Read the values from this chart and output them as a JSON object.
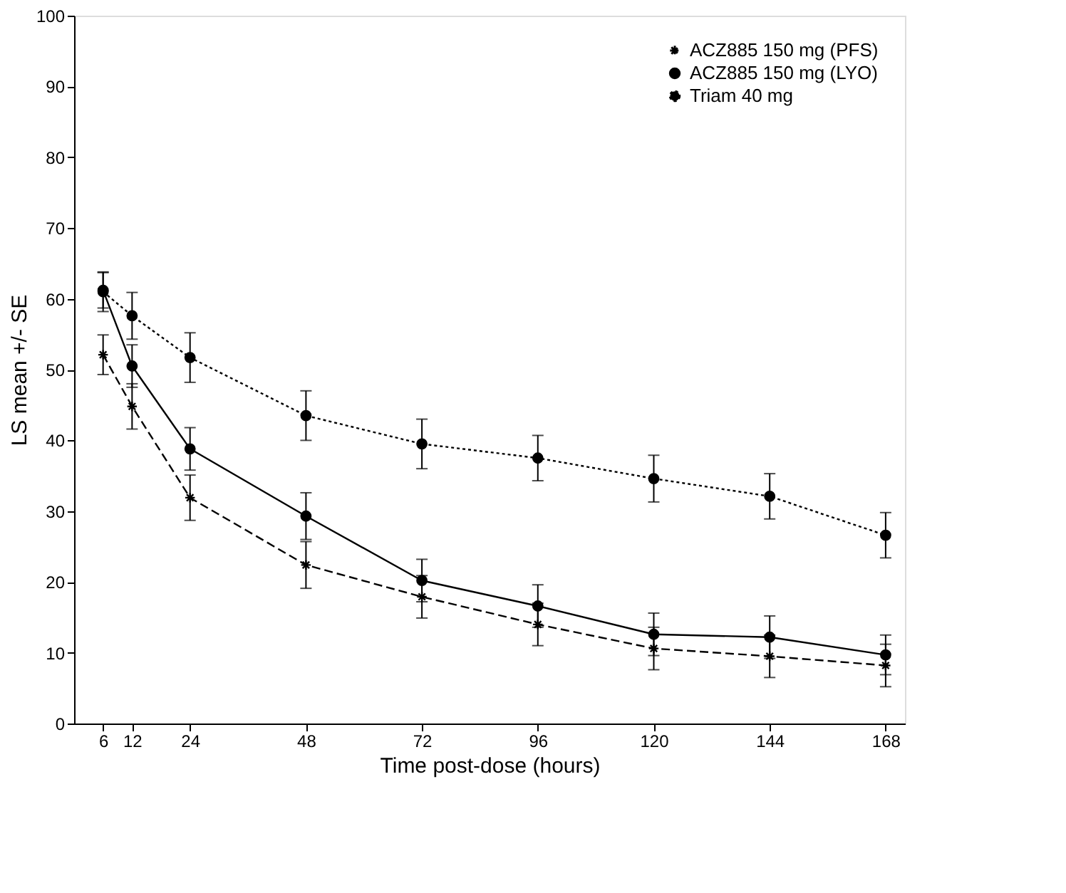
{
  "chart_data": {
    "type": "line",
    "xlabel": "Time post-dose (hours)",
    "ylabel": "LS mean +/- SE",
    "x": [
      6,
      12,
      24,
      48,
      72,
      96,
      120,
      144,
      168
    ],
    "xlim": [
      0,
      172
    ],
    "xticks": [
      6,
      12,
      24,
      48,
      72,
      96,
      120,
      144,
      168
    ],
    "ylim": [
      0,
      100
    ],
    "yticks": [
      0,
      10,
      20,
      30,
      40,
      50,
      60,
      70,
      80,
      90,
      100
    ],
    "grid": false,
    "legend": "top right",
    "series": [
      {
        "name": "ACZ885 150 mg (PFS)",
        "color": "#000000",
        "marker": "cross",
        "line_style": "dashed",
        "values": [
          52.1,
          44.8,
          31.9,
          22.4,
          17.9,
          14.0,
          10.6,
          9.5,
          8.2
        ],
        "errors": [
          2.8,
          3.2,
          3.2,
          3.3,
          3.0,
          3.0,
          3.0,
          3.0,
          3.0
        ]
      },
      {
        "name": "ACZ885 150 mg (LYO)",
        "color": "#000000",
        "marker": "circle",
        "line_style": "solid",
        "values": [
          61.2,
          50.5,
          38.8,
          29.3,
          20.2,
          16.6,
          12.6,
          12.2,
          9.7
        ],
        "errors": [
          2.5,
          3.0,
          3.0,
          3.3,
          3.0,
          3.0,
          3.0,
          3.0,
          2.8
        ]
      },
      {
        "name": "Triam 40 mg",
        "color": "#000000",
        "marker": "circle",
        "line_style": "dotted",
        "values": [
          61.0,
          57.6,
          51.7,
          43.5,
          39.5,
          37.5,
          34.6,
          32.1,
          26.6
        ],
        "errors": [
          2.8,
          3.3,
          3.5,
          3.5,
          3.5,
          3.2,
          3.3,
          3.2,
          3.2
        ]
      }
    ]
  }
}
